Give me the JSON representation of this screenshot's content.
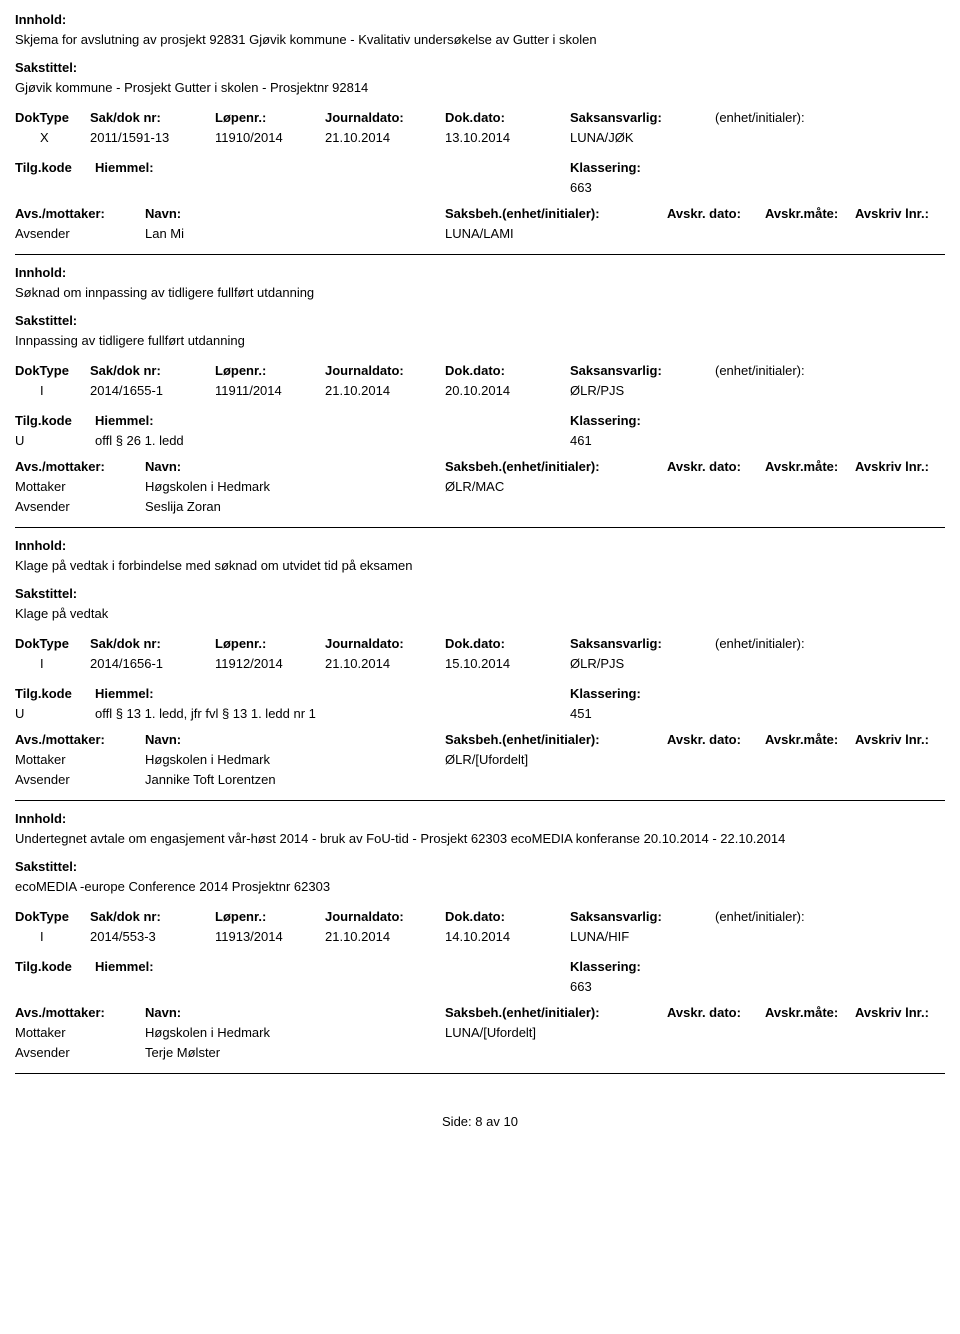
{
  "labels": {
    "innhold": "Innhold:",
    "sakstittel": "Sakstittel:",
    "doktype": "DokType",
    "saknr": "Sak/dok nr:",
    "lopenr": "Løpenr.:",
    "journaldato": "Journaldato:",
    "dokdato": "Dok.dato:",
    "saksansvarlig": "Saksansvarlig:",
    "enhetinit": "(enhet/initialer):",
    "tilgkode": "Tilg.kode",
    "hiemmel": "Hiemmel:",
    "klassering": "Klassering:",
    "avsmottaker": "Avs./mottaker:",
    "navn": "Navn:",
    "saksbeh": "Saksbeh.(enhet/initialer):",
    "avskrdato": "Avskr. dato:",
    "avskrmate": "Avskr.måte:",
    "avskrlnr": "Avskriv lnr.:",
    "mottaker": "Mottaker",
    "avsender": "Avsender",
    "side": "Side:",
    "av": "av"
  },
  "page": {
    "current": "8",
    "total": "10"
  },
  "records": [
    {
      "innhold": "Skjema for avslutning av prosjekt 92831 Gjøvik kommune - Kvalitativ undersøkelse av Gutter i skolen",
      "sakstittel": "Gjøvik kommune - Prosjekt Gutter i skolen - Prosjektnr 92814",
      "doktype": "X",
      "saknr": "2011/1591-13",
      "lopenr": "11910/2014",
      "jdato": "21.10.2014",
      "dokdato": "13.10.2014",
      "saksansv": "LUNA/JØK",
      "tilgkode": "",
      "hiemmel": "",
      "klassering": "663",
      "parties": [
        {
          "role": "Avsender",
          "name": "Lan Mi",
          "saksbeh": "LUNA/LAMI"
        }
      ]
    },
    {
      "innhold": "Søknad om innpassing av tidligere fullført utdanning",
      "sakstittel": "Innpassing av tidligere fullført utdanning",
      "doktype": "I",
      "saknr": "2014/1655-1",
      "lopenr": "11911/2014",
      "jdato": "21.10.2014",
      "dokdato": "20.10.2014",
      "saksansv": "ØLR/PJS",
      "tilgkode": "U",
      "hiemmel": "offl § 26 1. ledd",
      "klassering": "461",
      "parties": [
        {
          "role": "Mottaker",
          "name": "Høgskolen i Hedmark",
          "saksbeh": "ØLR/MAC"
        },
        {
          "role": "Avsender",
          "name": "Seslija Zoran",
          "saksbeh": ""
        }
      ]
    },
    {
      "innhold": "Klage på vedtak i forbindelse med søknad om utvidet tid på eksamen",
      "sakstittel": "Klage på vedtak",
      "doktype": "I",
      "saknr": "2014/1656-1",
      "lopenr": "11912/2014",
      "jdato": "21.10.2014",
      "dokdato": "15.10.2014",
      "saksansv": "ØLR/PJS",
      "tilgkode": "U",
      "hiemmel": "offl § 13 1. ledd, jfr fvl § 13 1. ledd nr 1",
      "klassering": "451",
      "parties": [
        {
          "role": "Mottaker",
          "name": "Høgskolen i Hedmark",
          "saksbeh": "ØLR/[Ufordelt]"
        },
        {
          "role": "Avsender",
          "name": "Jannike Toft Lorentzen",
          "saksbeh": ""
        }
      ]
    },
    {
      "innhold": "Undertegnet avtale om engasjement vår-høst 2014 - bruk av FoU-tid - Prosjekt 62303 ecoMEDIA konferanse 20.10.2014 - 22.10.2014",
      "sakstittel": "ecoMEDIA -europe Conference 2014 Prosjektnr 62303",
      "doktype": "I",
      "saknr": "2014/553-3",
      "lopenr": "11913/2014",
      "jdato": "21.10.2014",
      "dokdato": "14.10.2014",
      "saksansv": "LUNA/HIF",
      "tilgkode": "",
      "hiemmel": "",
      "klassering": "663",
      "parties": [
        {
          "role": "Mottaker",
          "name": "Høgskolen i Hedmark",
          "saksbeh": "LUNA/[Ufordelt]"
        },
        {
          "role": "Avsender",
          "name": "Terje Mølster",
          "saksbeh": ""
        }
      ]
    }
  ]
}
